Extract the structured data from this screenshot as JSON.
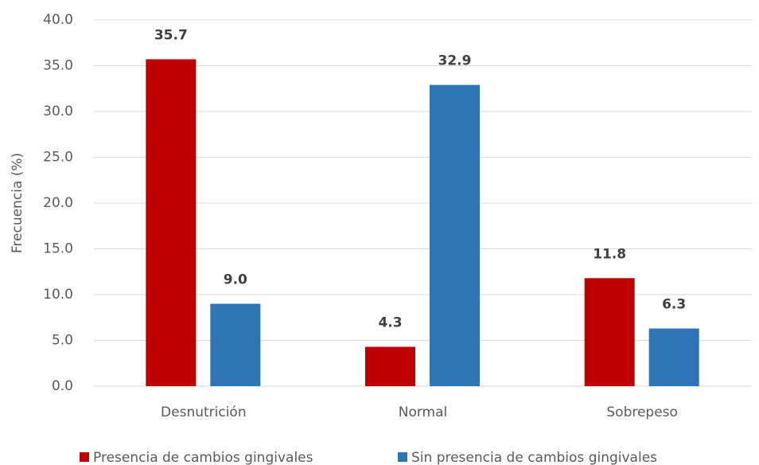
{
  "chart_data": {
    "type": "bar",
    "y_label": "Frecuencia (%)",
    "categories": [
      "Desnutrición",
      "Normal",
      "Sobrepeso"
    ],
    "series": [
      {
        "name": "Presencia de cambios gingivales",
        "color": "#c00000",
        "values": [
          35.7,
          4.3,
          11.8
        ],
        "value_labels": [
          "35.7",
          "4.3",
          "11.8"
        ]
      },
      {
        "name": "Sin presencia de cambios gingivales",
        "color": "#2e75b6",
        "values": [
          9.0,
          32.9,
          6.3
        ],
        "value_labels": [
          "9.0",
          "32.9",
          "6.3"
        ]
      }
    ],
    "ylim": [
      0,
      40
    ],
    "yticks": [
      {
        "value": 0,
        "label": "0.0"
      },
      {
        "value": 5,
        "label": "5.0"
      },
      {
        "value": 10,
        "label": "10.0"
      },
      {
        "value": 15,
        "label": "15.0"
      },
      {
        "value": 20,
        "label": "20.0"
      },
      {
        "value": 25,
        "label": "25.0"
      },
      {
        "value": 30,
        "label": "30.0"
      },
      {
        "value": 35,
        "label": "35.0"
      },
      {
        "value": 40,
        "label": "40.0"
      }
    ],
    "grid": true,
    "legend": "bottom"
  }
}
